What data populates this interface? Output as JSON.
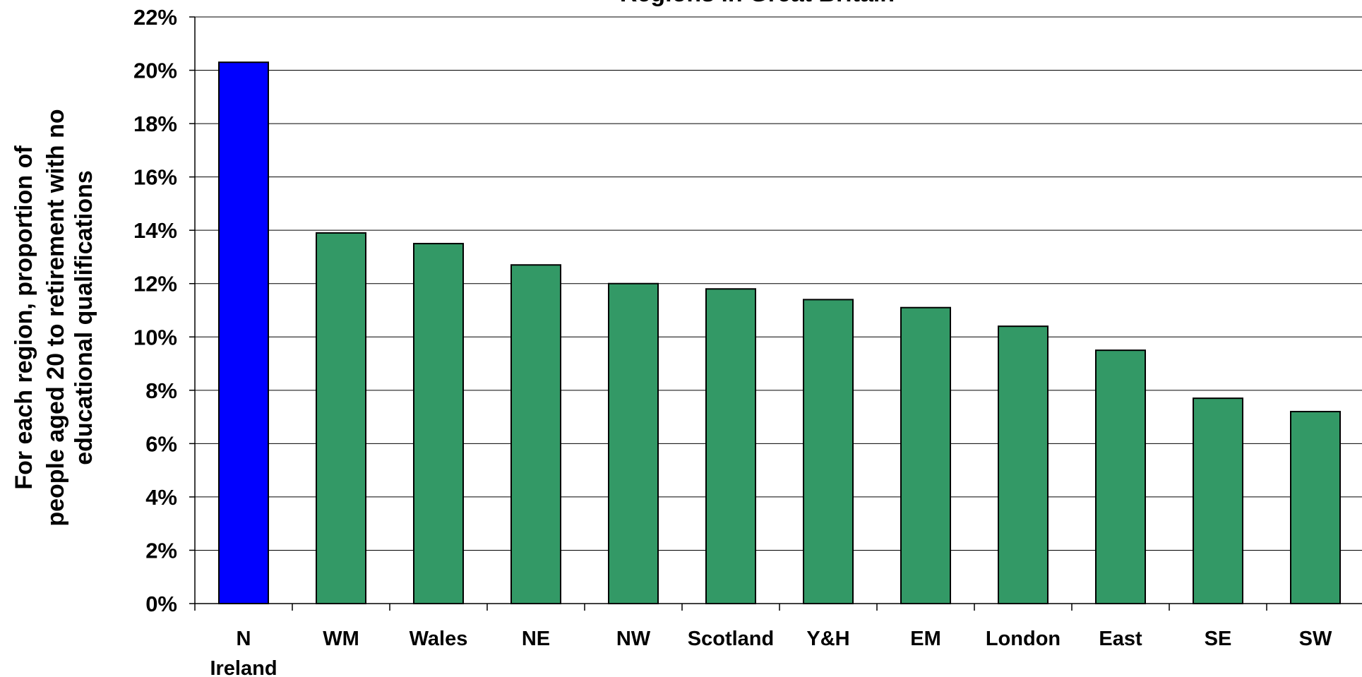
{
  "chart_data": {
    "type": "bar",
    "title": "Regions in Great Britain",
    "ylabel": [
      "For each region, proportion of",
      "people aged 20 to retirement with no",
      "educational qualifications"
    ],
    "xlabel": "",
    "categories": [
      [
        "N",
        "Ireland"
      ],
      [
        "WM"
      ],
      [
        "Wales"
      ],
      [
        "NE"
      ],
      [
        "NW"
      ],
      [
        "Scotland"
      ],
      [
        "Y&H"
      ],
      [
        "EM"
      ],
      [
        "London"
      ],
      [
        "East"
      ],
      [
        "SE"
      ],
      [
        "SW"
      ]
    ],
    "values": [
      20.3,
      13.9,
      13.5,
      12.7,
      12.0,
      11.8,
      11.4,
      11.1,
      10.4,
      9.5,
      7.7,
      7.2
    ],
    "colors": [
      "#0000ff",
      "#339966",
      "#339966",
      "#339966",
      "#339966",
      "#339966",
      "#339966",
      "#339966",
      "#339966",
      "#339966",
      "#339966",
      "#339966"
    ],
    "ylim": [
      0,
      22
    ],
    "yticks": [
      0,
      2,
      4,
      6,
      8,
      10,
      12,
      14,
      16,
      18,
      20,
      22
    ],
    "ytick_labels": [
      "0%",
      "2%",
      "4%",
      "6%",
      "8%",
      "10%",
      "12%",
      "14%",
      "16%",
      "18%",
      "20%",
      "22%"
    ],
    "grid": true,
    "legend": "none"
  }
}
